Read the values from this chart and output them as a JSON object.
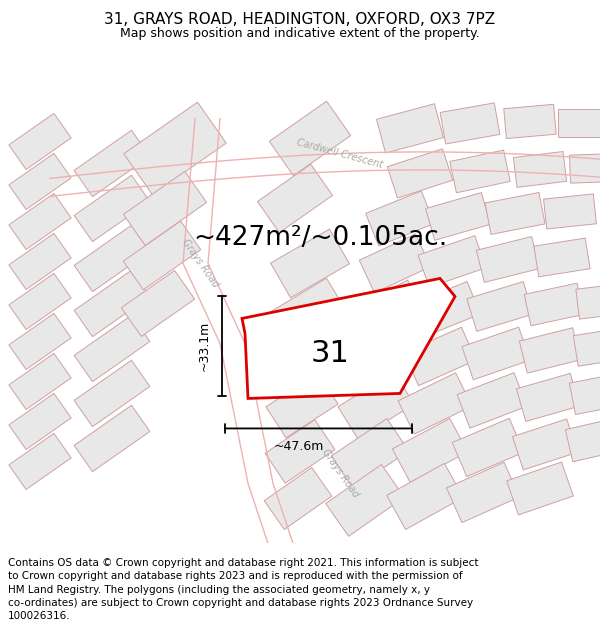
{
  "title": "31, GRAYS ROAD, HEADINGTON, OXFORD, OX3 7PZ",
  "subtitle": "Map shows position and indicative extent of the property.",
  "area_text": "~427m²/~0.105ac.",
  "label_31": "31",
  "dim_vertical": "~33.1m",
  "dim_horizontal": "~47.6m",
  "footer_lines": [
    "Contains OS data © Crown copyright and database right 2021. This information is subject",
    "to Crown copyright and database rights 2023 and is reproduced with the permission of",
    "HM Land Registry. The polygons (including the associated geometry, namely x, y",
    "co-ordinates) are subject to Crown copyright and database rights 2023 Ordnance Survey",
    "100026316."
  ],
  "bg_color": "#ffffff",
  "road_line_color": "#f0b0b0",
  "building_fill": "#e8e8e8",
  "building_edge": "#d0a0a0",
  "property_color": "#dd0000",
  "title_fontsize": 11,
  "subtitle_fontsize": 9,
  "area_fontsize": 19,
  "label_fontsize": 22,
  "footer_fontsize": 7.5,
  "road_label_color": "#aaaaaa",
  "road_label_fontsize": 7
}
